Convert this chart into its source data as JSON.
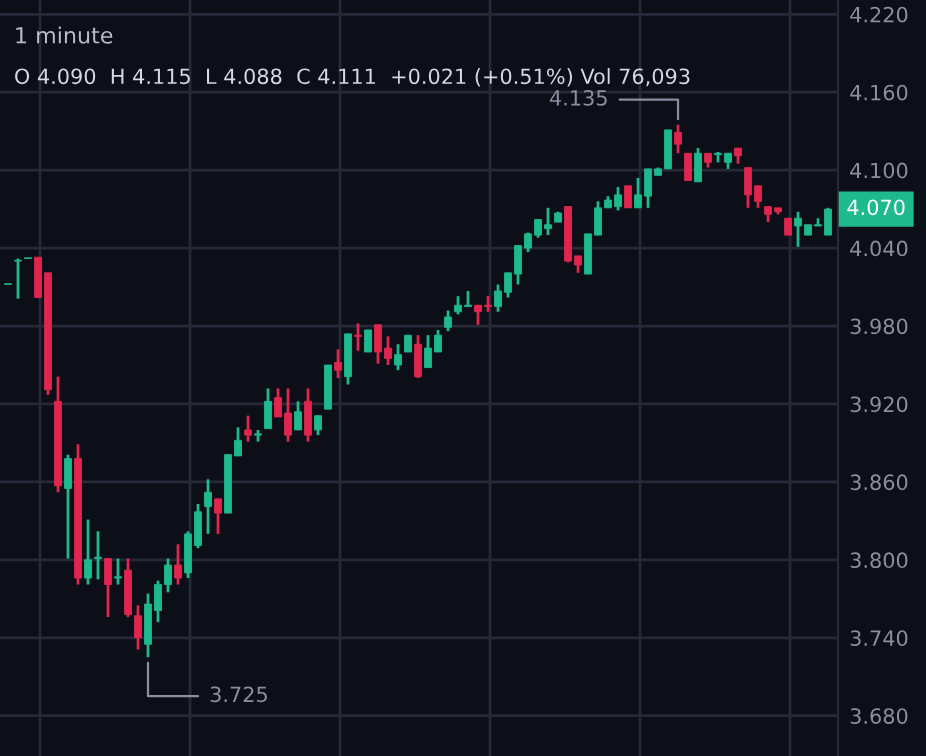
{
  "chart_data": {
    "type": "candlestick",
    "title": "1 minute",
    "subtitle": "O 4.090  H 4.115  L 4.088  C 4.111  +0.021 (+0.51%) Vol 76,093",
    "categories": [
      null,
      null,
      null,
      null,
      null,
      null,
      null,
      null,
      null,
      null,
      null,
      null,
      null,
      null,
      null,
      null,
      null,
      null,
      null,
      null,
      null,
      null,
      null,
      null,
      null,
      null,
      null,
      null,
      null,
      null,
      null,
      null,
      null,
      null,
      null,
      null,
      null,
      null,
      null,
      null,
      null,
      null,
      null,
      null,
      null,
      null,
      null,
      null,
      null,
      null,
      null,
      null,
      null,
      null,
      null,
      null,
      null,
      null,
      null,
      null,
      null,
      null,
      null,
      null,
      null,
      null,
      null,
      null,
      null,
      null,
      null,
      null,
      null,
      null,
      null,
      null,
      null,
      null,
      null,
      null,
      null,
      null,
      null
    ],
    "ohlc": [
      [
        4.012,
        4.012,
        4.012,
        4.012
      ],
      [
        4.03,
        4.032,
        4.001,
        4.03
      ],
      [
        4.032,
        4.032,
        4.032,
        4.032
      ],
      [
        4.033,
        4.033,
        4.002,
        4.002
      ],
      [
        4.021,
        4.021,
        3.927,
        3.931
      ],
      [
        3.922,
        3.941,
        3.852,
        3.857
      ],
      [
        3.855,
        3.881,
        3.801,
        3.878
      ],
      [
        3.878,
        3.889,
        3.781,
        3.786
      ],
      [
        3.786,
        3.831,
        3.781,
        3.8
      ],
      [
        3.801,
        3.822,
        3.785,
        3.802
      ],
      [
        3.801,
        3.801,
        3.756,
        3.781
      ],
      [
        3.786,
        3.801,
        3.781,
        3.787
      ],
      [
        3.792,
        3.801,
        3.756,
        3.758
      ],
      [
        3.757,
        3.765,
        3.731,
        3.74
      ],
      [
        3.735,
        3.774,
        3.725,
        3.766
      ],
      [
        3.761,
        3.784,
        3.752,
        3.781
      ],
      [
        3.781,
        3.801,
        3.775,
        3.796
      ],
      [
        3.796,
        3.812,
        3.781,
        3.786
      ],
      [
        3.79,
        3.822,
        3.786,
        3.82
      ],
      [
        3.811,
        3.843,
        3.809,
        3.837
      ],
      [
        3.841,
        3.862,
        3.82,
        3.852
      ],
      [
        3.847,
        3.847,
        3.82,
        3.836
      ],
      [
        3.836,
        3.881,
        3.836,
        3.881
      ],
      [
        3.88,
        3.902,
        3.88,
        3.892
      ],
      [
        3.9,
        3.911,
        3.891,
        3.896
      ],
      [
        3.896,
        3.9,
        3.891,
        3.897
      ],
      [
        3.901,
        3.932,
        3.901,
        3.922
      ],
      [
        3.925,
        3.932,
        3.91,
        3.91
      ],
      [
        3.913,
        3.932,
        3.891,
        3.896
      ],
      [
        3.9,
        3.922,
        3.9,
        3.914
      ],
      [
        3.922,
        3.932,
        3.891,
        3.896
      ],
      [
        3.9,
        3.911,
        3.896,
        3.911
      ],
      [
        3.916,
        3.95,
        3.916,
        3.95
      ],
      [
        3.952,
        3.962,
        3.94,
        3.946
      ],
      [
        3.941,
        3.974,
        3.935,
        3.974
      ],
      [
        3.973,
        3.982,
        3.961,
        3.972
      ],
      [
        3.96,
        3.977,
        3.96,
        3.977
      ],
      [
        3.981,
        3.981,
        3.951,
        3.96
      ],
      [
        3.963,
        3.972,
        3.95,
        3.955
      ],
      [
        3.95,
        3.966,
        3.946,
        3.958
      ],
      [
        3.96,
        3.973,
        3.96,
        3.973
      ],
      [
        3.966,
        3.973,
        3.94,
        3.941
      ],
      [
        3.948,
        3.973,
        3.948,
        3.963
      ],
      [
        3.96,
        3.977,
        3.96,
        3.973
      ],
      [
        3.979,
        3.992,
        3.976,
        3.987
      ],
      [
        3.991,
        4.003,
        3.989,
        3.996
      ],
      [
        3.995,
        4.007,
        3.995,
        3.996
      ],
      [
        3.996,
        3.996,
        3.981,
        3.991
      ],
      [
        3.996,
        4.003,
        3.991,
        3.995
      ],
      [
        3.995,
        4.012,
        3.991,
        4.007
      ],
      [
        4.006,
        4.021,
        4.002,
        4.021
      ],
      [
        4.02,
        4.042,
        4.012,
        4.042
      ],
      [
        4.04,
        4.052,
        4.037,
        4.051
      ],
      [
        4.05,
        4.062,
        4.048,
        4.062
      ],
      [
        4.055,
        4.071,
        4.05,
        4.058
      ],
      [
        4.06,
        4.068,
        4.06,
        4.067
      ],
      [
        4.072,
        4.072,
        4.029,
        4.03
      ],
      [
        4.034,
        4.034,
        4.021,
        4.027
      ],
      [
        4.02,
        4.051,
        4.02,
        4.051
      ],
      [
        4.05,
        4.076,
        4.05,
        4.071
      ],
      [
        4.071,
        4.08,
        4.071,
        4.077
      ],
      [
        4.072,
        4.087,
        4.069,
        4.081
      ],
      [
        4.088,
        4.088,
        4.071,
        4.071
      ],
      [
        4.071,
        4.094,
        4.071,
        4.081
      ],
      [
        4.08,
        4.101,
        4.071,
        4.101
      ],
      [
        4.096,
        4.102,
        4.096,
        4.101
      ],
      [
        4.101,
        4.131,
        4.101,
        4.131
      ],
      [
        4.129,
        4.135,
        4.113,
        4.12
      ],
      [
        4.113,
        4.113,
        4.092,
        4.092
      ],
      [
        4.091,
        4.117,
        4.091,
        4.113
      ],
      [
        4.113,
        4.113,
        4.102,
        4.106
      ],
      [
        4.112,
        4.114,
        4.106,
        4.113
      ],
      [
        4.106,
        4.113,
        4.101,
        4.113
      ],
      [
        4.117,
        4.117,
        4.105,
        4.111
      ],
      [
        4.102,
        4.102,
        4.071,
        4.081
      ],
      [
        4.088,
        4.088,
        4.071,
        4.076
      ],
      [
        4.072,
        4.072,
        4.06,
        4.066
      ],
      [
        4.071,
        4.071,
        4.066,
        4.068
      ],
      [
        4.063,
        4.063,
        4.05,
        4.05
      ],
      [
        4.057,
        4.068,
        4.041,
        4.063
      ],
      [
        4.05,
        4.058,
        4.05,
        4.058
      ],
      [
        4.057,
        4.063,
        4.057,
        4.058
      ],
      [
        4.05,
        4.071,
        4.05,
        4.07
      ]
    ],
    "ylim": [
      3.649,
      4.231
    ],
    "yticks": [
      {
        "value": 3.68,
        "label": "3.680"
      },
      {
        "value": 3.74,
        "label": "3.740"
      },
      {
        "value": 3.8,
        "label": "3.800"
      },
      {
        "value": 3.86,
        "label": "3.860"
      },
      {
        "value": 3.92,
        "label": "3.920"
      },
      {
        "value": 3.98,
        "label": "3.980"
      },
      {
        "value": 4.04,
        "label": "4.040"
      },
      {
        "value": 4.1,
        "label": "4.100"
      },
      {
        "value": 4.16,
        "label": "4.160"
      },
      {
        "value": 4.22,
        "label": "4.220"
      }
    ],
    "grid": true,
    "annotations": [
      "4.135",
      "3.725",
      "4.070"
    ]
  }
}
